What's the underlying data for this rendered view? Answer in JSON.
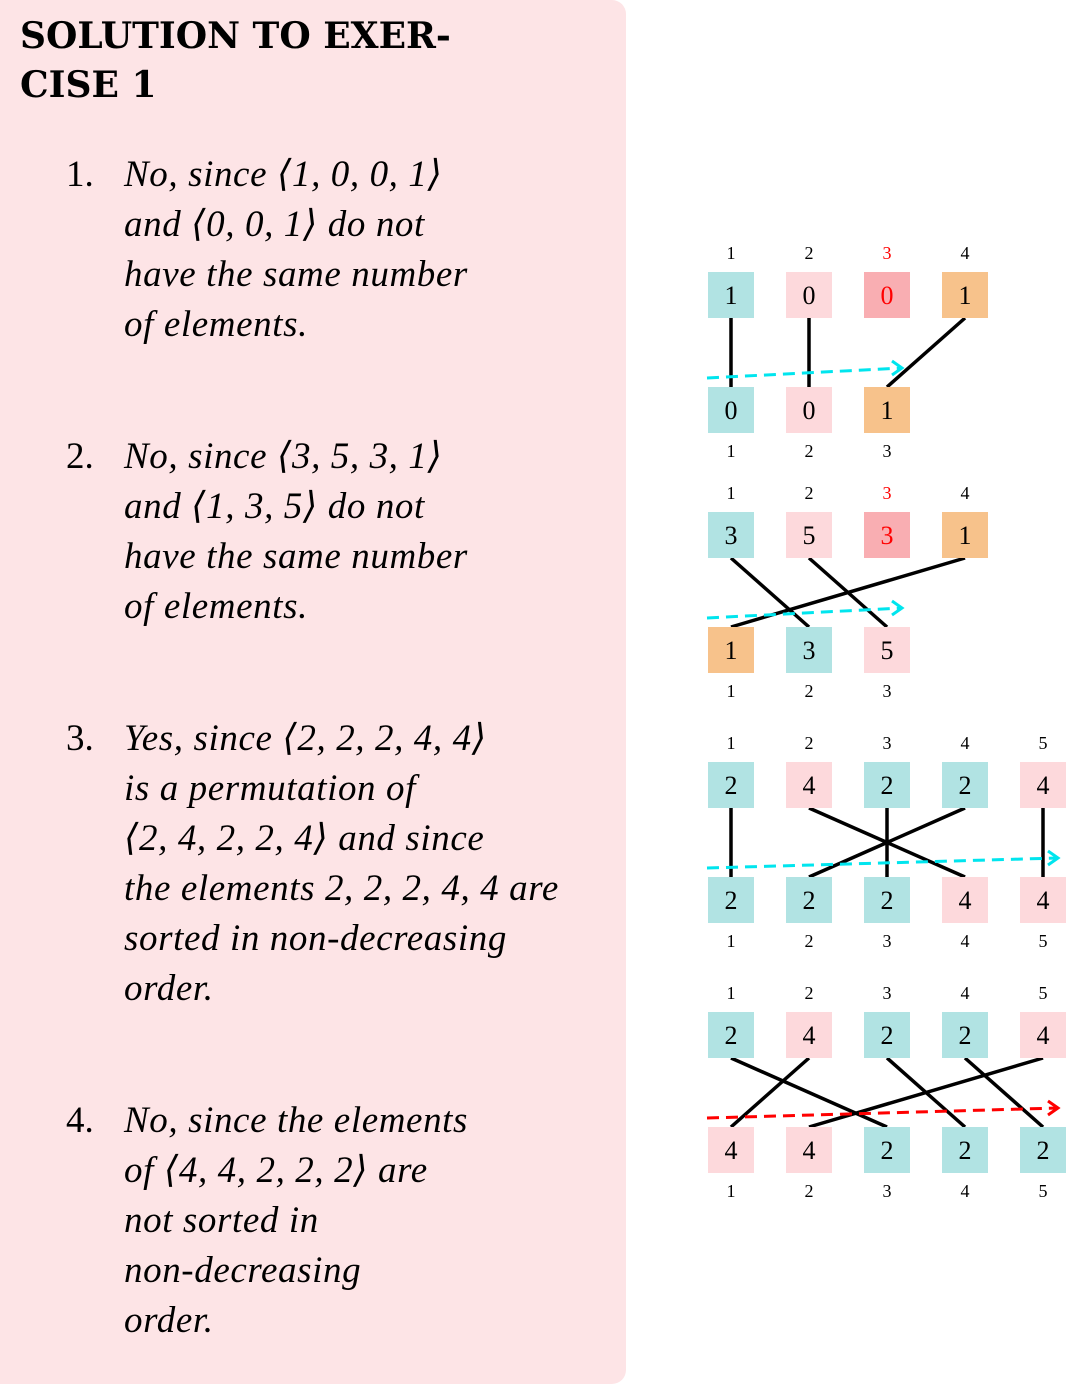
{
  "title": "SOLUTION TO EXER- CISE 1",
  "title_lines": [
    "SOLUTION TO EXER-",
    "CISE 1"
  ],
  "answers": [
    {
      "number": "1.",
      "lines": [
        "No, since ⟨1, 0, 0, 1⟩",
        "and ⟨0, 0, 1⟩ do not",
        "have the same number",
        "of elements."
      ]
    },
    {
      "number": "2.",
      "lines": [
        "No, since ⟨3, 5, 3, 1⟩",
        "and ⟨1, 3, 5⟩ do not",
        "have the same number",
        "of elements."
      ]
    },
    {
      "number": "3.",
      "lines": [
        "Yes, since ⟨2, 2, 2, 4, 4⟩",
        "is a permutation of",
        "⟨2, 4, 2, 2, 4⟩ and since",
        "the elements 2, 2, 2, 4, 4 are",
        "sorted in non-decreasing",
        "order."
      ]
    },
    {
      "number": "4.",
      "lines": [
        "No, since the elements",
        "of ⟨4, 4, 2, 2, 2⟩ are",
        "not sorted in",
        "non-decreasing",
        "order."
      ]
    }
  ],
  "colors": {
    "panel_bg": "#fde4e6",
    "teal": "#b1e3e3",
    "pink": "#fdd9dc",
    "red_box": "#f9aeb2",
    "orange": "#f7c28b",
    "cyan_arrow": "#00e5ee",
    "red_arrow": "#ff0000",
    "red_text": "#ff0000",
    "line": "#000000"
  },
  "diagrams": [
    {
      "top": [
        {
          "index": "1",
          "value": "1",
          "color": "teal"
        },
        {
          "index": "2",
          "value": "0",
          "color": "pink"
        },
        {
          "index": "3",
          "value": "0",
          "color": "red_box",
          "red_text": true
        },
        {
          "index": "4",
          "value": "1",
          "color": "orange"
        }
      ],
      "bottom": [
        {
          "index": "1",
          "value": "0",
          "color": "teal"
        },
        {
          "index": "2",
          "value": "0",
          "color": "pink"
        },
        {
          "index": "3",
          "value": "1",
          "color": "orange"
        }
      ],
      "links": [
        [
          0,
          0
        ],
        [
          1,
          1
        ],
        [
          3,
          2
        ]
      ],
      "arrow": "cyan"
    },
    {
      "top": [
        {
          "index": "1",
          "value": "3",
          "color": "teal"
        },
        {
          "index": "2",
          "value": "5",
          "color": "pink"
        },
        {
          "index": "3",
          "value": "3",
          "color": "red_box",
          "red_text": true
        },
        {
          "index": "4",
          "value": "1",
          "color": "orange"
        }
      ],
      "bottom": [
        {
          "index": "1",
          "value": "1",
          "color": "orange"
        },
        {
          "index": "2",
          "value": "3",
          "color": "teal"
        },
        {
          "index": "3",
          "value": "5",
          "color": "pink"
        }
      ],
      "links": [
        [
          0,
          1
        ],
        [
          1,
          2
        ],
        [
          3,
          0
        ]
      ],
      "arrow": "cyan"
    },
    {
      "top": [
        {
          "index": "1",
          "value": "2",
          "color": "teal"
        },
        {
          "index": "2",
          "value": "4",
          "color": "pink"
        },
        {
          "index": "3",
          "value": "2",
          "color": "teal"
        },
        {
          "index": "4",
          "value": "2",
          "color": "teal"
        },
        {
          "index": "5",
          "value": "4",
          "color": "pink"
        }
      ],
      "bottom": [
        {
          "index": "1",
          "value": "2",
          "color": "teal"
        },
        {
          "index": "2",
          "value": "2",
          "color": "teal"
        },
        {
          "index": "3",
          "value": "2",
          "color": "teal"
        },
        {
          "index": "4",
          "value": "4",
          "color": "pink"
        },
        {
          "index": "5",
          "value": "4",
          "color": "pink"
        }
      ],
      "links": [
        [
          0,
          0
        ],
        [
          1,
          3
        ],
        [
          2,
          2
        ],
        [
          3,
          1
        ],
        [
          4,
          4
        ]
      ],
      "arrow": "cyan"
    },
    {
      "top": [
        {
          "index": "1",
          "value": "2",
          "color": "teal"
        },
        {
          "index": "2",
          "value": "4",
          "color": "pink"
        },
        {
          "index": "3",
          "value": "2",
          "color": "teal"
        },
        {
          "index": "4",
          "value": "2",
          "color": "teal"
        },
        {
          "index": "5",
          "value": "4",
          "color": "pink"
        }
      ],
      "bottom": [
        {
          "index": "1",
          "value": "4",
          "color": "pink"
        },
        {
          "index": "2",
          "value": "4",
          "color": "pink"
        },
        {
          "index": "3",
          "value": "2",
          "color": "teal"
        },
        {
          "index": "4",
          "value": "2",
          "color": "teal"
        },
        {
          "index": "5",
          "value": "2",
          "color": "teal"
        }
      ],
      "links": [
        [
          0,
          2
        ],
        [
          1,
          0
        ],
        [
          2,
          3
        ],
        [
          3,
          4
        ],
        [
          4,
          1
        ]
      ],
      "arrow": "red"
    }
  ]
}
